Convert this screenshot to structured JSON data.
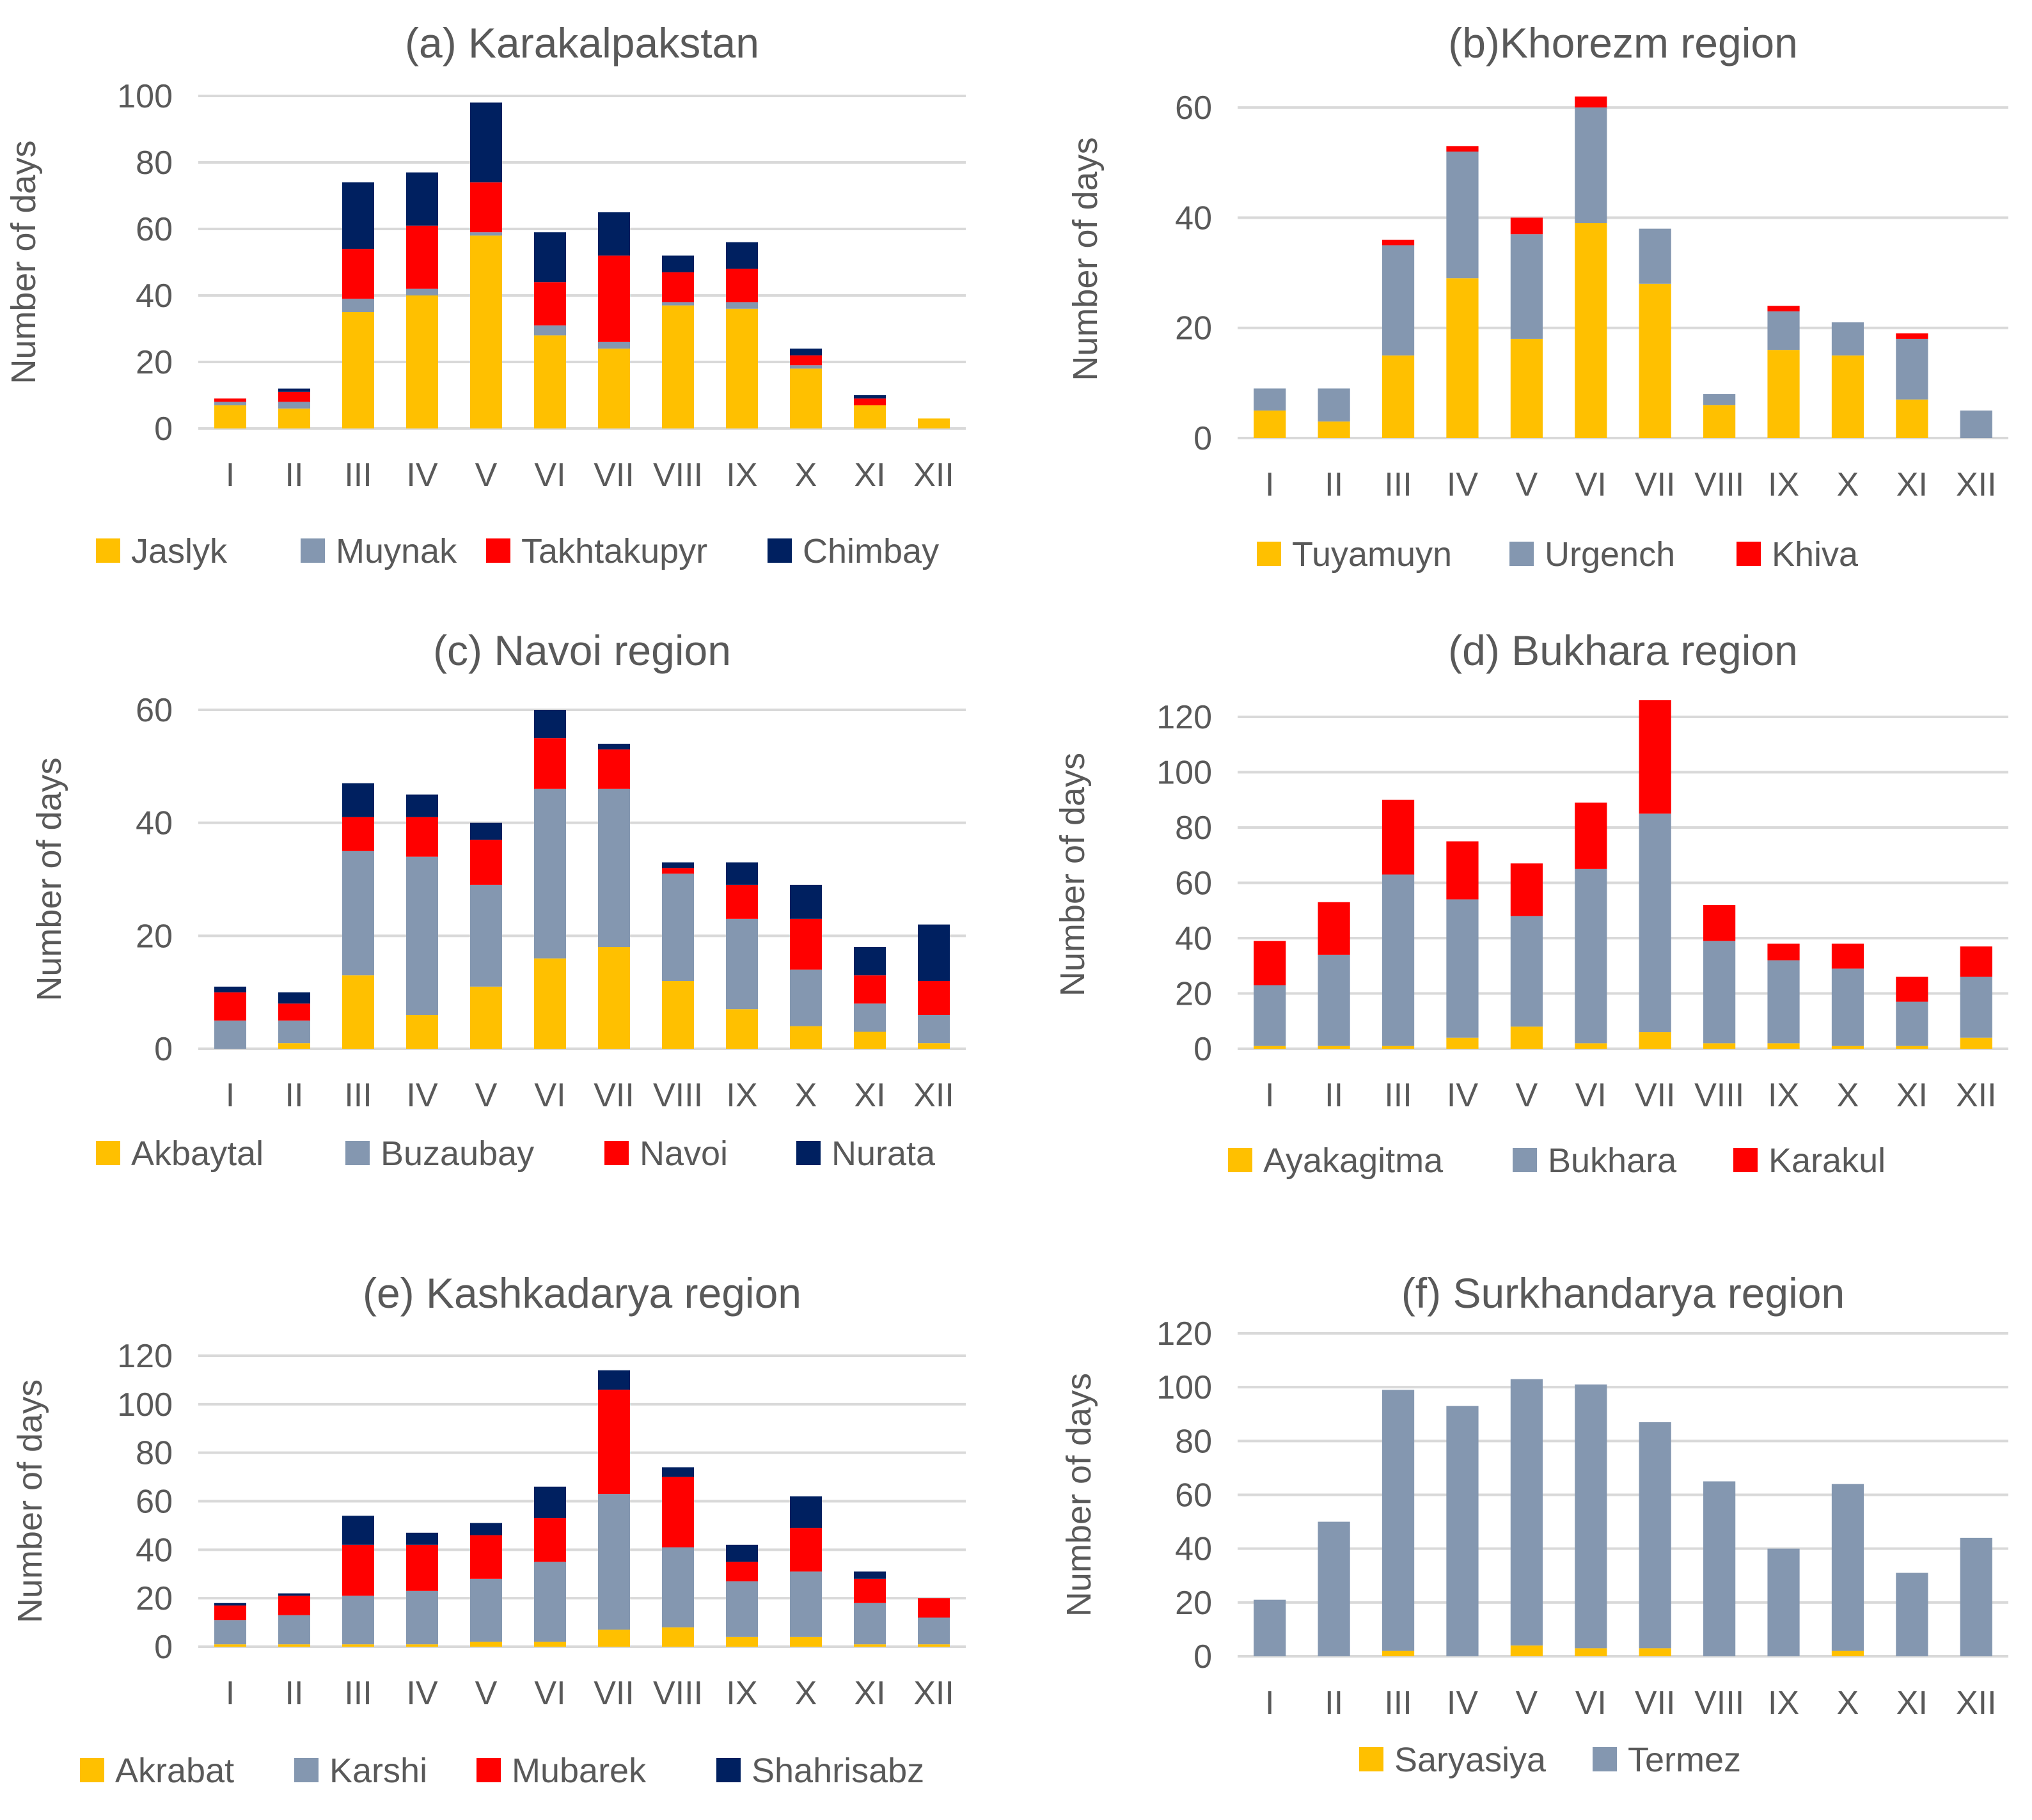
{
  "chart_data": [
    {
      "type": "bar",
      "stacked": true,
      "title": "(a) Karakalpakstan",
      "ylabel": "Number of days",
      "xlabel": "",
      "ylim": [
        0,
        100
      ],
      "yticks": [
        0,
        20,
        40,
        60,
        80,
        100
      ],
      "categories": [
        "I",
        "II",
        "III",
        "IV",
        "V",
        "VI",
        "VII",
        "VIII",
        "IX",
        "X",
        "XI",
        "XII"
      ],
      "legend_position": "bottom",
      "series": [
        {
          "name": "Jaslyk",
          "color": "#FFC000",
          "values": [
            7,
            6,
            35,
            40,
            58,
            28,
            24,
            37,
            36,
            18,
            7,
            3
          ]
        },
        {
          "name": "Muynak",
          "color": "#8497B0",
          "values": [
            1,
            2,
            4,
            2,
            1,
            3,
            2,
            1,
            2,
            1,
            0,
            0
          ]
        },
        {
          "name": "Takhtakupyr",
          "color": "#FF0000",
          "values": [
            1,
            3,
            15,
            19,
            15,
            13,
            26,
            9,
            10,
            3,
            2,
            0
          ]
        },
        {
          "name": "Chimbay",
          "color": "#002060",
          "values": [
            0,
            1,
            20,
            16,
            24,
            15,
            13,
            5,
            8,
            2,
            1,
            0
          ]
        }
      ]
    },
    {
      "type": "bar",
      "stacked": true,
      "title": "(b)Khorezm region",
      "ylabel": "Number of days",
      "xlabel": "",
      "ylim": [
        0,
        65
      ],
      "yticks": [
        0,
        20,
        40,
        60
      ],
      "categories": [
        "I",
        "II",
        "III",
        "IV",
        "V",
        "VI",
        "VII",
        "VIII",
        "IX",
        "X",
        "XI",
        "XII"
      ],
      "legend_position": "bottom",
      "series": [
        {
          "name": "Tuyamuyn",
          "color": "#FFC000",
          "values": [
            5,
            3,
            15,
            29,
            18,
            39,
            28,
            6,
            16,
            15,
            7,
            0
          ]
        },
        {
          "name": "Urgench",
          "color": "#8497B0",
          "values": [
            4,
            6,
            20,
            23,
            19,
            21,
            10,
            2,
            7,
            6,
            11,
            5
          ]
        },
        {
          "name": "Khiva",
          "color": "#FF0000",
          "values": [
            0,
            0,
            1,
            1,
            3,
            2,
            0,
            0,
            1,
            0,
            1,
            0
          ]
        }
      ]
    },
    {
      "type": "bar",
      "stacked": true,
      "title": "(c) Navoi region",
      "ylabel": "Number of days",
      "xlabel": "",
      "ylim": [
        0,
        60
      ],
      "yticks": [
        0,
        20,
        40,
        60
      ],
      "categories": [
        "I",
        "II",
        "III",
        "IV",
        "V",
        "VI",
        "VII",
        "VIII",
        "IX",
        "X",
        "XI",
        "XII"
      ],
      "legend_position": "bottom",
      "series": [
        {
          "name": "Akbaytal",
          "color": "#FFC000",
          "values": [
            0,
            1,
            13,
            6,
            11,
            16,
            18,
            12,
            7,
            4,
            3,
            1
          ]
        },
        {
          "name": "Buzaubay",
          "color": "#8497B0",
          "values": [
            5,
            4,
            22,
            28,
            18,
            30,
            28,
            19,
            16,
            10,
            5,
            5
          ]
        },
        {
          "name": "Navoi",
          "color": "#FF0000",
          "values": [
            5,
            3,
            6,
            7,
            8,
            9,
            7,
            1,
            6,
            9,
            5,
            6
          ]
        },
        {
          "name": "Nurata",
          "color": "#002060",
          "values": [
            1,
            2,
            6,
            4,
            3,
            5,
            1,
            1,
            4,
            6,
            5,
            10
          ]
        }
      ]
    },
    {
      "type": "bar",
      "stacked": true,
      "title": "(d) Bukhara region",
      "ylabel": "Number of days",
      "xlabel": "",
      "ylim": [
        0,
        126
      ],
      "yticks": [
        0,
        20,
        40,
        60,
        80,
        100,
        120
      ],
      "categories": [
        "I",
        "II",
        "III",
        "IV",
        "V",
        "VI",
        "VII",
        "VIII",
        "IX",
        "X",
        "XI",
        "XII"
      ],
      "legend_position": "bottom",
      "series": [
        {
          "name": "Ayakagitma",
          "color": "#FFC000",
          "values": [
            1,
            1,
            1,
            4,
            8,
            2,
            6,
            2,
            2,
            1,
            1,
            4
          ]
        },
        {
          "name": "Bukhara",
          "color": "#8497B0",
          "values": [
            22,
            33,
            62,
            50,
            40,
            63,
            79,
            37,
            30,
            28,
            16,
            22
          ]
        },
        {
          "name": "Karakul",
          "color": "#FF0000",
          "values": [
            16,
            19,
            27,
            21,
            19,
            24,
            41,
            13,
            6,
            9,
            9,
            11
          ]
        }
      ]
    },
    {
      "type": "bar",
      "stacked": true,
      "title": "(e) Kashkadarya region",
      "ylabel": "Number of days",
      "xlabel": "",
      "ylim": [
        0,
        120
      ],
      "yticks": [
        0,
        20,
        40,
        60,
        80,
        100,
        120
      ],
      "categories": [
        "I",
        "II",
        "III",
        "IV",
        "V",
        "VI",
        "VII",
        "VIII",
        "IX",
        "X",
        "XI",
        "XII"
      ],
      "legend_position": "bottom",
      "series": [
        {
          "name": "Akrabat",
          "color": "#FFC000",
          "values": [
            1,
            1,
            1,
            1,
            2,
            2,
            7,
            8,
            4,
            4,
            1,
            1
          ]
        },
        {
          "name": "Karshi",
          "color": "#8497B0",
          "values": [
            10,
            12,
            20,
            22,
            26,
            33,
            56,
            33,
            23,
            27,
            17,
            11
          ]
        },
        {
          "name": "Mubarek",
          "color": "#FF0000",
          "values": [
            6,
            8,
            21,
            19,
            18,
            18,
            43,
            29,
            8,
            18,
            10,
            8
          ]
        },
        {
          "name": "Shahrisabz",
          "color": "#002060",
          "values": [
            1,
            1,
            12,
            5,
            5,
            13,
            8,
            4,
            7,
            13,
            3,
            0
          ]
        }
      ]
    },
    {
      "type": "bar",
      "stacked": true,
      "title": "(f) Surkhandarya region",
      "ylabel": "Number of days",
      "xlabel": "",
      "ylim": [
        0,
        120
      ],
      "yticks": [
        0,
        20,
        40,
        60,
        80,
        100,
        120
      ],
      "categories": [
        "I",
        "II",
        "III",
        "IV",
        "V",
        "VI",
        "VII",
        "VIII",
        "IX",
        "X",
        "XI",
        "XII"
      ],
      "legend_position": "bottom",
      "series": [
        {
          "name": "Saryasiya",
          "color": "#FFC000",
          "values": [
            0,
            0,
            2,
            0,
            4,
            3,
            3,
            0,
            0,
            2,
            0,
            0
          ]
        },
        {
          "name": "Termez",
          "color": "#8497B0",
          "values": [
            21,
            50,
            97,
            93,
            99,
            98,
            84,
            65,
            40,
            62,
            31,
            44
          ]
        }
      ]
    }
  ]
}
